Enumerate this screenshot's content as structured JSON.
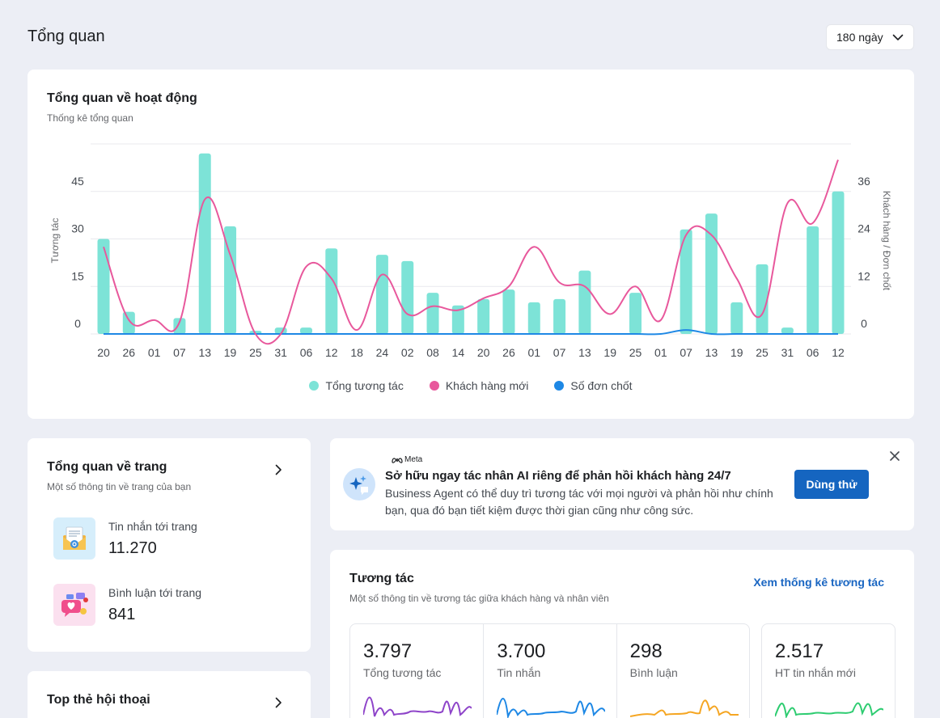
{
  "header": {
    "title": "Tổng quan",
    "period": "180 ngày"
  },
  "activity": {
    "title": "Tổng quan về hoạt động",
    "subtitle": "Thống kê tổng quan"
  },
  "chart_data": {
    "type": "bar",
    "title": "Tổng quan về hoạt động",
    "subtitle": "Thống kê tổng quan",
    "categories": [
      "20",
      "26",
      "01",
      "07",
      "13",
      "19",
      "25",
      "31",
      "06",
      "12",
      "18",
      "24",
      "02",
      "08",
      "14",
      "20",
      "26",
      "01",
      "07",
      "13",
      "19",
      "25",
      "01",
      "07",
      "13",
      "19",
      "25",
      "31",
      "06",
      "12"
    ],
    "ylabel": "Tương tác",
    "y2label": "Khách hàng / Đơn chốt",
    "yticks": [
      "0",
      "15",
      "30",
      "45"
    ],
    "y2ticks": [
      "0",
      "12",
      "24",
      "36"
    ],
    "ylim": [
      0,
      60
    ],
    "y2lim": [
      0,
      48
    ],
    "grid": true,
    "legend_position": "bottom",
    "series": [
      {
        "name": "Tổng tương tác",
        "type": "bar",
        "axis": "left",
        "color": "#7de3d7",
        "values": [
          30,
          7,
          0,
          5,
          57,
          34,
          1,
          2,
          2,
          27,
          0,
          25,
          23,
          13,
          9,
          11,
          14,
          10,
          11,
          20,
          0,
          13,
          0,
          33,
          38,
          10,
          22,
          2,
          34,
          45
        ]
      },
      {
        "name": "Khách hàng mới",
        "type": "line",
        "axis": "right",
        "color": "#e8589c",
        "values": [
          22,
          3.5,
          3.5,
          3,
          34,
          20,
          0,
          0,
          17,
          14,
          1,
          15,
          5,
          7,
          6,
          9,
          12,
          22,
          13,
          12,
          5,
          12,
          3.5,
          25,
          25,
          14,
          5,
          33,
          28,
          44
        ]
      },
      {
        "name": "Số đơn chốt",
        "type": "line",
        "axis": "right",
        "color": "#1e88e5",
        "values": [
          0,
          0,
          0,
          0,
          0,
          0,
          0,
          0,
          0,
          0,
          0,
          0,
          0,
          0,
          0,
          0,
          0,
          0,
          0,
          0,
          0,
          0,
          0,
          1,
          0,
          0,
          0,
          0,
          0,
          0
        ]
      }
    ]
  },
  "page_overview": {
    "title": "Tổng quan về trang",
    "subtitle": "Một số thông tin về trang của bạn",
    "items": [
      {
        "label": "Tin nhắn tới trang",
        "value": "11.270",
        "icon": "envelope-icon"
      },
      {
        "label": "Bình luận tới trang",
        "value": "841",
        "icon": "comment-heart-icon"
      }
    ]
  },
  "top_tags": {
    "title": "Top thẻ hội thoại"
  },
  "promo": {
    "brand": "Meta",
    "title": "Sở hữu ngay tác nhân AI riêng để phản hồi khách hàng 24/7",
    "description": "Business Agent có thể duy trì tương tác với mọi người và phản hồi như chính bạn, qua đó bạn tiết kiệm được thời gian cũng như công sức.",
    "button": "Dùng thử"
  },
  "interaction": {
    "title": "Tương tác",
    "subtitle": "Một số thông tin về tương tác giữa khách hàng và nhân viên",
    "link": "Xem thống kê tương tác",
    "metrics": [
      {
        "value": "3.797",
        "label": "Tổng tương tác",
        "color": "#8e44c9"
      },
      {
        "value": "3.700",
        "label": "Tin nhắn",
        "color": "#1e88e5"
      },
      {
        "value": "298",
        "label": "Bình luận",
        "color": "#f5a623"
      },
      {
        "value": "2.517",
        "label": "HT tin nhắn mới",
        "color": "#2ecc71"
      }
    ]
  }
}
